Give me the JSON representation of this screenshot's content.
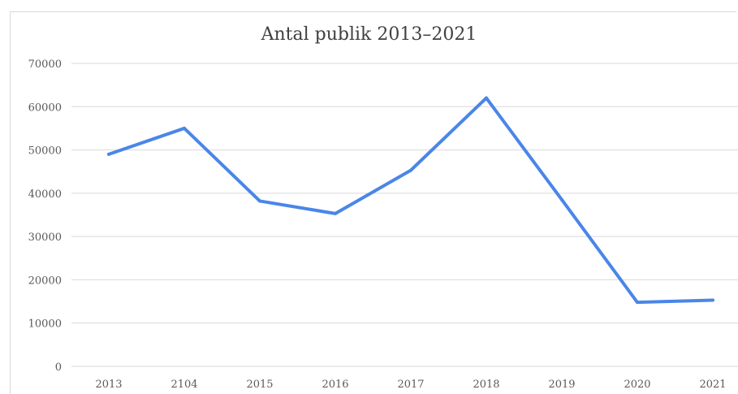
{
  "chart_data": {
    "type": "line",
    "title": "Antal publik 2013–2021",
    "xlabel": "",
    "ylabel": "",
    "categories": [
      "2013",
      "2104",
      "2015",
      "2016",
      "2017",
      "2018",
      "2019",
      "2020",
      "2021"
    ],
    "series": [
      {
        "values": [
          49000,
          55000,
          38200,
          35300,
          45300,
          62000,
          38500,
          14800,
          15300
        ]
      }
    ],
    "ylim": [
      0,
      70000
    ],
    "yticks": [
      "0",
      "10000",
      "20000",
      "30000",
      "40000",
      "50000",
      "60000",
      "70000"
    ],
    "grid": true,
    "legend": "none"
  },
  "colors": {
    "line": "#4a86e8",
    "grid": "#d9d9d9",
    "text": "#595959"
  }
}
